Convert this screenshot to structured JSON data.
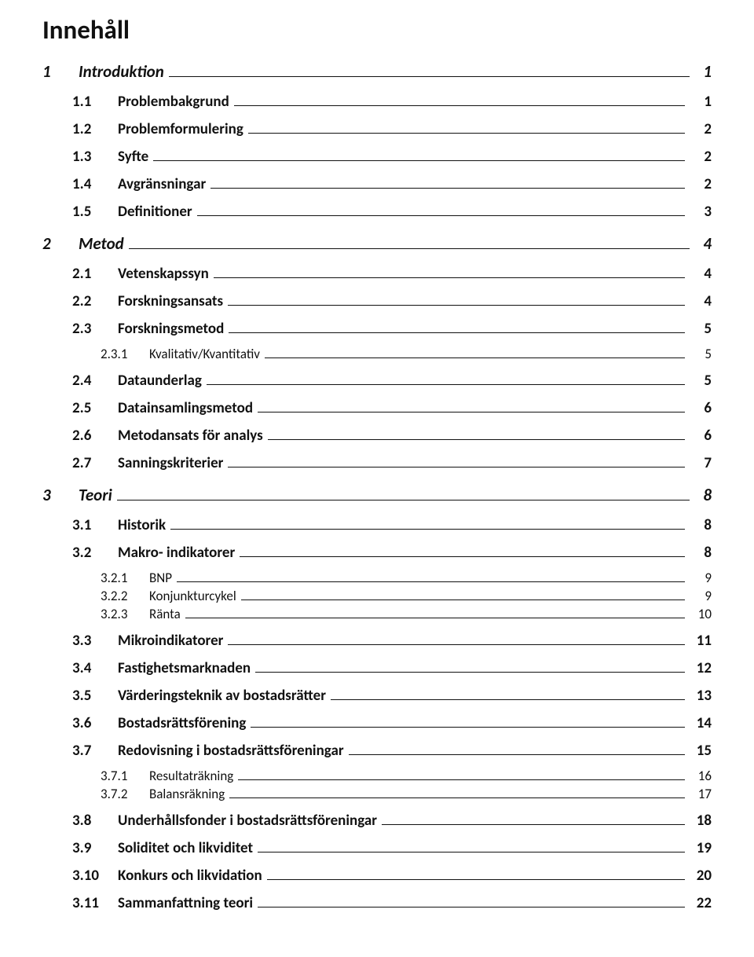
{
  "document": {
    "title": "Innehåll",
    "font_family": "Calibri",
    "background_color": "#ffffff",
    "text_color": "#111111",
    "fontsize": {
      "title": 33,
      "lvl1": 21,
      "lvl2": 19,
      "lvl3": 17
    },
    "toc": [
      {
        "level": 1,
        "num": "1",
        "text": "Introduktion",
        "page": "1"
      },
      {
        "level": 2,
        "num": "1.1",
        "text": "Problembakgrund",
        "page": "1"
      },
      {
        "level": 2,
        "num": "1.2",
        "text": "Problemformulering",
        "page": "2"
      },
      {
        "level": 2,
        "num": "1.3",
        "text": "Syfte",
        "page": "2"
      },
      {
        "level": 2,
        "num": "1.4",
        "text": "Avgränsningar",
        "page": "2"
      },
      {
        "level": 2,
        "num": "1.5",
        "text": "Definitioner",
        "page": "3"
      },
      {
        "level": 1,
        "num": "2",
        "text": "Metod",
        "page": "4"
      },
      {
        "level": 2,
        "num": "2.1",
        "text": "Vetenskapssyn",
        "page": "4"
      },
      {
        "level": 2,
        "num": "2.2",
        "text": "Forskningsansats",
        "page": "4"
      },
      {
        "level": 2,
        "num": "2.3",
        "text": "Forskningsmetod",
        "page": "5"
      },
      {
        "level": 3,
        "num": "2.3.1",
        "text": "Kvalitativ/Kvantitativ",
        "page": "5"
      },
      {
        "level": 2,
        "num": "2.4",
        "text": "Dataunderlag",
        "page": "5"
      },
      {
        "level": 2,
        "num": "2.5",
        "text": "Datainsamlingsmetod",
        "page": "6"
      },
      {
        "level": 2,
        "num": "2.6",
        "text": "Metodansats för analys",
        "page": "6"
      },
      {
        "level": 2,
        "num": "2.7",
        "text": "Sanningskriterier",
        "page": "7"
      },
      {
        "level": 1,
        "num": "3",
        "text": "Teori",
        "page": "8"
      },
      {
        "level": 2,
        "num": "3.1",
        "text": "Historik",
        "page": "8"
      },
      {
        "level": 2,
        "num": "3.2",
        "text": "Makro- indikatorer",
        "page": "8"
      },
      {
        "level": 3,
        "num": "3.2.1",
        "text": "BNP",
        "page": "9"
      },
      {
        "level": 3,
        "num": "3.2.2",
        "text": "Konjunkturcykel",
        "page": "9"
      },
      {
        "level": 3,
        "num": "3.2.3",
        "text": "Ränta",
        "page": "10"
      },
      {
        "level": 2,
        "num": "3.3",
        "text": "Mikroindikatorer",
        "page": "11"
      },
      {
        "level": 2,
        "num": "3.4",
        "text": "Fastighetsmarknaden",
        "page": "12"
      },
      {
        "level": 2,
        "num": "3.5",
        "text": "Värderingsteknik av bostadsrätter",
        "page": "13"
      },
      {
        "level": 2,
        "num": "3.6",
        "text": "Bostadsrättsförening",
        "page": "14"
      },
      {
        "level": 2,
        "num": "3.7",
        "text": "Redovisning i bostadsrättsföreningar",
        "page": "15"
      },
      {
        "level": 3,
        "num": "3.7.1",
        "text": "Resultaträkning",
        "page": "16"
      },
      {
        "level": 3,
        "num": "3.7.2",
        "text": "Balansräkning",
        "page": "17"
      },
      {
        "level": 2,
        "num": "3.8",
        "text": "Underhållsfonder i bostadsrättsföreningar",
        "page": "18"
      },
      {
        "level": 2,
        "num": "3.9",
        "text": "Soliditet och likviditet",
        "page": "19"
      },
      {
        "level": 2,
        "num": "3.10",
        "text": "Konkurs och likvidation",
        "page": "20"
      },
      {
        "level": 2,
        "num": "3.11",
        "text": "Sammanfattning teori",
        "page": "22"
      }
    ]
  }
}
